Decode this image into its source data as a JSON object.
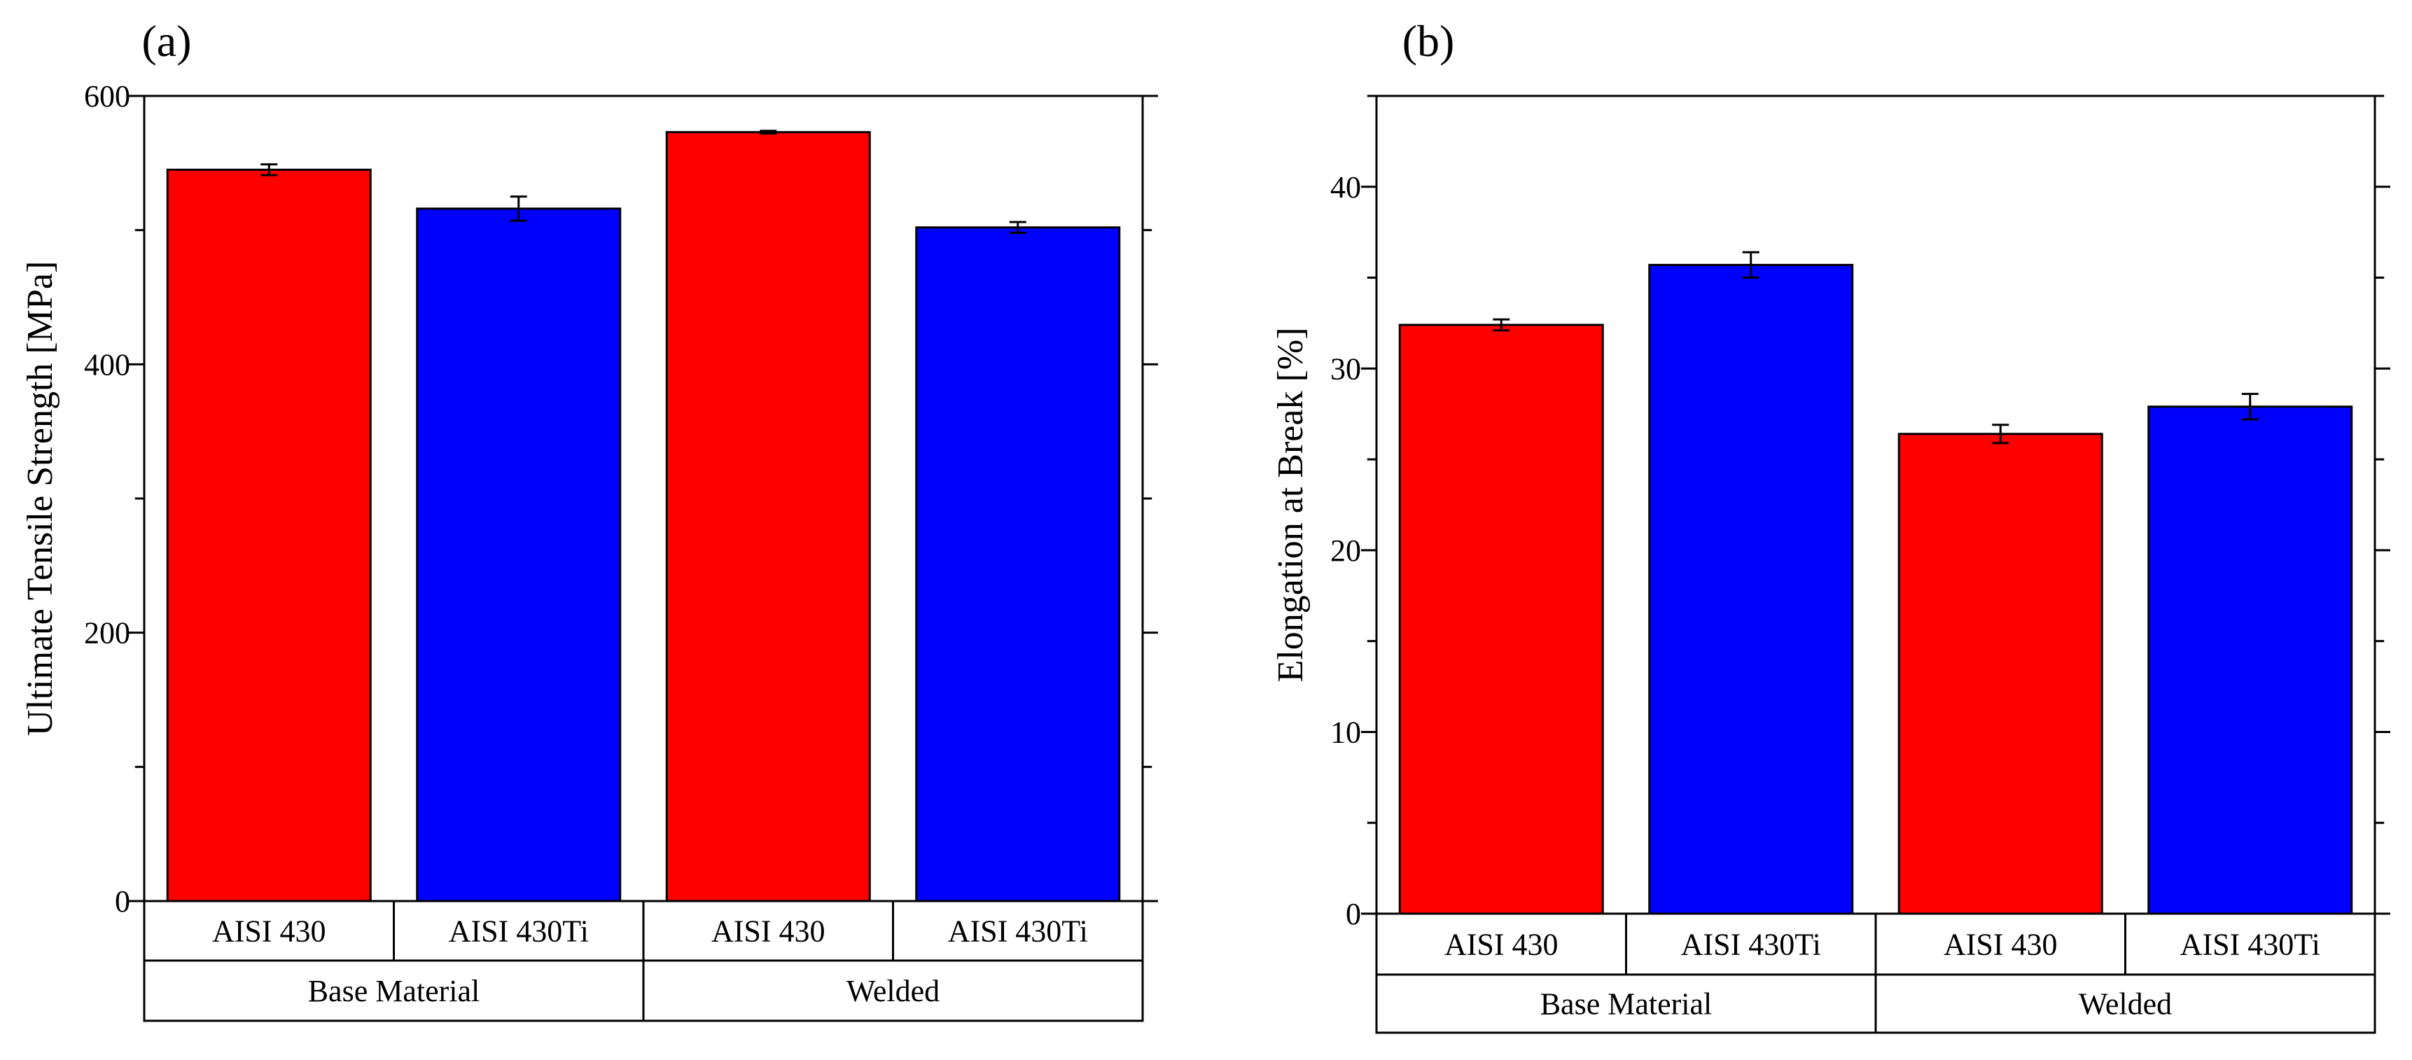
{
  "colors": {
    "red": "#ff0000",
    "blue": "#0000ff",
    "axis": "#000000"
  },
  "chart_data": [
    {
      "type": "bar",
      "panel_label": "(a)",
      "title": "",
      "xlabel": "",
      "ylabel": "Ultimate Tensile Strength [MPa]",
      "ylim": [
        0,
        600
      ],
      "yticks": [
        0,
        200,
        400,
        600
      ],
      "categories": [
        "AISI 430",
        "AISI 430Ti",
        "AISI 430",
        "AISI 430Ti"
      ],
      "groups": [
        "Base Material",
        "Welded"
      ],
      "values": [
        545,
        516,
        573,
        502
      ],
      "errors": [
        4,
        9,
        1,
        4
      ],
      "bar_colors": [
        "red",
        "blue",
        "red",
        "blue"
      ],
      "grid": false,
      "legend": "none"
    },
    {
      "type": "bar",
      "panel_label": "(b)",
      "title": "",
      "xlabel": "",
      "ylabel": "Elongation at Break [%]",
      "ylim": [
        0,
        45
      ],
      "yticks": [
        0,
        10,
        20,
        30,
        40
      ],
      "categories": [
        "AISI 430",
        "AISI 430Ti",
        "AISI 430",
        "AISI 430Ti"
      ],
      "groups": [
        "Base Material",
        "Welded"
      ],
      "values": [
        32.4,
        35.7,
        26.4,
        27.9
      ],
      "errors": [
        0.3,
        0.7,
        0.5,
        0.7
      ],
      "bar_colors": [
        "red",
        "blue",
        "red",
        "blue"
      ],
      "grid": false,
      "legend": "none"
    }
  ]
}
